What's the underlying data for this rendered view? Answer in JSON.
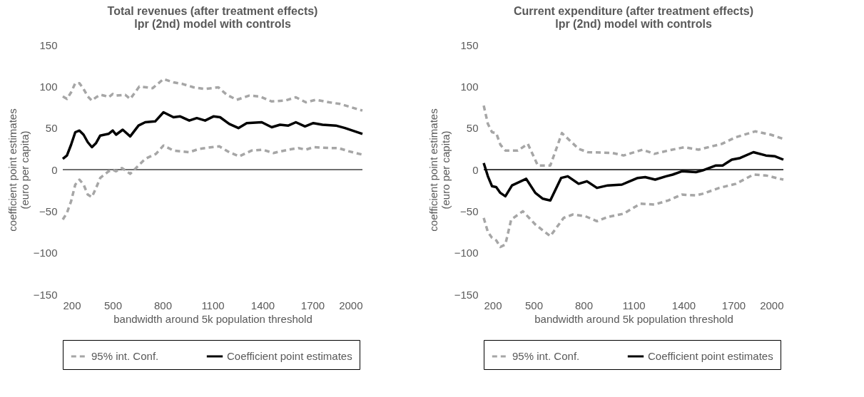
{
  "chart_data": [
    {
      "type": "line",
      "title": "Total revenues (after treatment effects)\nlpr (2nd) model with controls",
      "xlabel": "bandwidth around 5k population threshold",
      "ylabel": "coefficient point estimates\n(euro per capita)",
      "xlim": [
        200,
        2000
      ],
      "ylim": [
        -150,
        150
      ],
      "xticks": [
        200,
        500,
        800,
        1100,
        1400,
        1700,
        2000
      ],
      "yticks": [
        -150,
        -100,
        -50,
        0,
        50,
        100,
        150
      ],
      "grid": false,
      "legend": "bottom",
      "ref_lines": [
        {
          "axis": "y",
          "value": 0,
          "color": "#404040"
        }
      ],
      "series": [
        {
          "name": "95% int. Conf.",
          "color": "#a6a6a6",
          "line_style": "dashed",
          "x": [
            200,
            225,
            250,
            275,
            300,
            325,
            350,
            375,
            400,
            425,
            450,
            475,
            500,
            520,
            575,
            605,
            660,
            740,
            805,
            865,
            920,
            985,
            1055,
            1135,
            1185,
            1245,
            1320,
            1385,
            1455,
            1535,
            1600,
            1660,
            1720,
            1800,
            1865,
            2000
          ],
          "values": [
            88,
            85,
            93,
            104,
            104,
            97,
            88,
            83,
            87,
            90,
            89,
            87,
            91,
            89,
            90,
            85,
            100,
            98,
            109,
            105,
            103,
            99,
            97,
            99,
            90,
            84,
            89,
            88,
            82,
            83,
            87,
            81,
            84,
            81,
            79,
            71
          ]
        },
        {
          "color": "#a6a6a6",
          "line_style": "dashed",
          "x": [
            200,
            225,
            250,
            275,
            300,
            325,
            350,
            375,
            400,
            425,
            450,
            475,
            500,
            520,
            555,
            605,
            695,
            760,
            805,
            865,
            960,
            1020,
            1095,
            1140,
            1200,
            1260,
            1335,
            1400,
            1465,
            1555,
            1615,
            1660,
            1705,
            1800,
            1855,
            1920,
            2000
          ],
          "values": [
            -60,
            -52,
            -38,
            -18,
            -12,
            -18,
            -30,
            -33,
            -22,
            -10,
            -6,
            -2,
            0,
            -2,
            2,
            -5,
            13,
            19,
            29,
            23,
            21,
            25,
            27,
            28,
            21,
            16,
            23,
            24,
            20,
            24,
            26,
            24,
            27,
            26,
            26,
            22,
            18
          ]
        },
        {
          "name": "Coefficient point estimates",
          "color": "#000000",
          "line_style": "solid",
          "x": [
            200,
            225,
            250,
            275,
            300,
            325,
            350,
            375,
            400,
            425,
            450,
            475,
            500,
            520,
            560,
            605,
            655,
            695,
            755,
            805,
            865,
            905,
            960,
            1005,
            1055,
            1105,
            1145,
            1200,
            1255,
            1305,
            1395,
            1455,
            1505,
            1555,
            1600,
            1655,
            1705,
            1760,
            1840,
            1895,
            2000
          ],
          "values": [
            13,
            17,
            30,
            45,
            47,
            42,
            33,
            27,
            32,
            41,
            42,
            43,
            47,
            42,
            48,
            40,
            53,
            57,
            58,
            69,
            63,
            64,
            59,
            62,
            59,
            64,
            63,
            55,
            50,
            56,
            57,
            51,
            54,
            53,
            57,
            52,
            56,
            54,
            53,
            50,
            43
          ]
        }
      ]
    },
    {
      "type": "line",
      "title": "Current expenditure (after treatment effects)\nlpr (2nd) model with controls",
      "xlabel": "bandwidth around 5k population threshold",
      "ylabel": "coefficient point estimates\n(euro per capita)",
      "xlim": [
        200,
        2000
      ],
      "ylim": [
        -150,
        150
      ],
      "xticks": [
        200,
        500,
        800,
        1100,
        1400,
        1700,
        2000
      ],
      "yticks": [
        -150,
        -100,
        -50,
        0,
        50,
        100,
        150
      ],
      "grid": false,
      "legend": "bottom",
      "ref_lines": [
        {
          "axis": "y",
          "value": 0,
          "color": "#000000"
        }
      ],
      "series": [
        {
          "name": "95% int. Conf.",
          "color": "#a6a6a6",
          "line_style": "dashed",
          "x": [
            200,
            225,
            250,
            275,
            300,
            330,
            405,
            465,
            525,
            600,
            670,
            770,
            825,
            975,
            1040,
            1155,
            1225,
            1310,
            1405,
            1490,
            1630,
            1715,
            1830,
            1925,
            2000
          ],
          "values": [
            77,
            55,
            45,
            44,
            30,
            23,
            23,
            31,
            5,
            5,
            44,
            25,
            21,
            20,
            17,
            24,
            19,
            23,
            27,
            24,
            31,
            39,
            46,
            42,
            37
          ]
        },
        {
          "color": "#a6a6a6",
          "line_style": "dashed",
          "x": [
            200,
            225,
            250,
            275,
            300,
            330,
            365,
            435,
            510,
            600,
            680,
            735,
            810,
            880,
            945,
            1040,
            1140,
            1225,
            1310,
            1390,
            1475,
            1515,
            1615,
            1715,
            1820,
            1895,
            2000
          ],
          "values": [
            -58,
            -75,
            -82,
            -85,
            -93,
            -90,
            -60,
            -50,
            -66,
            -80,
            -58,
            -54,
            -56,
            -62,
            -57,
            -53,
            -41,
            -42,
            -37,
            -30,
            -31,
            -29,
            -22,
            -17,
            -6,
            -7,
            -12
          ]
        },
        {
          "name": "Coefficient point estimates",
          "color": "#000000",
          "line_style": "solid",
          "x": [
            200,
            225,
            250,
            275,
            300,
            330,
            370,
            455,
            510,
            555,
            600,
            665,
            705,
            770,
            820,
            880,
            945,
            1030,
            1125,
            1170,
            1230,
            1295,
            1335,
            1390,
            1475,
            1515,
            1595,
            1635,
            1690,
            1740,
            1820,
            1895,
            1950,
            2000
          ],
          "values": [
            8,
            -8,
            -20,
            -21,
            -28,
            -32,
            -19,
            -11,
            -28,
            -35,
            -37,
            -10,
            -8,
            -17,
            -14,
            -22,
            -19,
            -18,
            -10,
            -9,
            -12,
            -8,
            -6,
            -2,
            -3,
            -1,
            5,
            5,
            12,
            14,
            21,
            17,
            16,
            12
          ]
        }
      ]
    }
  ]
}
